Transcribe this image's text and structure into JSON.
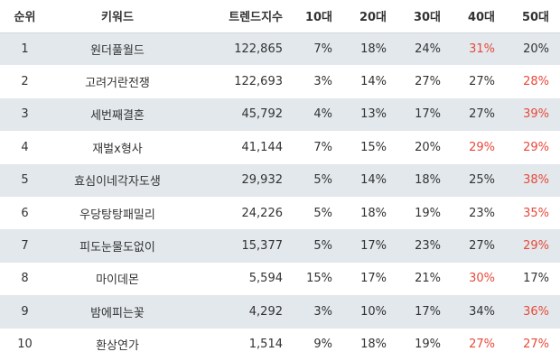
{
  "headers": [
    "순위",
    "키워드",
    "트렌드지수",
    "10대",
    "20대",
    "30대",
    "40대",
    "50대"
  ],
  "highlight_color": "#e8493a",
  "row_shade_color": "#e2e8ec",
  "rows": [
    {
      "rank": "1",
      "keyword": "원더풀월드",
      "trend": "122,865",
      "ages": [
        "7%",
        "18%",
        "24%",
        "31%",
        "20%"
      ],
      "highlight": [
        false,
        false,
        false,
        true,
        false
      ]
    },
    {
      "rank": "2",
      "keyword": "고려거란전쟁",
      "trend": "122,693",
      "ages": [
        "3%",
        "14%",
        "27%",
        "27%",
        "28%"
      ],
      "highlight": [
        false,
        false,
        false,
        false,
        true
      ]
    },
    {
      "rank": "3",
      "keyword": "세번째결혼",
      "trend": "45,792",
      "ages": [
        "4%",
        "13%",
        "17%",
        "27%",
        "39%"
      ],
      "highlight": [
        false,
        false,
        false,
        false,
        true
      ]
    },
    {
      "rank": "4",
      "keyword": "재벌x형사",
      "trend": "41,144",
      "ages": [
        "7%",
        "15%",
        "20%",
        "29%",
        "29%"
      ],
      "highlight": [
        false,
        false,
        false,
        true,
        true
      ]
    },
    {
      "rank": "5",
      "keyword": "효심이네각자도생",
      "trend": "29,932",
      "ages": [
        "5%",
        "14%",
        "18%",
        "25%",
        "38%"
      ],
      "highlight": [
        false,
        false,
        false,
        false,
        true
      ]
    },
    {
      "rank": "6",
      "keyword": "우당탕탕패밀리",
      "trend": "24,226",
      "ages": [
        "5%",
        "18%",
        "19%",
        "23%",
        "35%"
      ],
      "highlight": [
        false,
        false,
        false,
        false,
        true
      ]
    },
    {
      "rank": "7",
      "keyword": "피도눈물도없이",
      "trend": "15,377",
      "ages": [
        "5%",
        "17%",
        "23%",
        "27%",
        "29%"
      ],
      "highlight": [
        false,
        false,
        false,
        false,
        true
      ]
    },
    {
      "rank": "8",
      "keyword": "마이데몬",
      "trend": "5,594",
      "ages": [
        "15%",
        "17%",
        "21%",
        "30%",
        "17%"
      ],
      "highlight": [
        false,
        false,
        false,
        true,
        false
      ]
    },
    {
      "rank": "9",
      "keyword": "밤에피는꽃",
      "trend": "4,292",
      "ages": [
        "3%",
        "10%",
        "17%",
        "34%",
        "36%"
      ],
      "highlight": [
        false,
        false,
        false,
        false,
        true
      ]
    },
    {
      "rank": "10",
      "keyword": "환상연가",
      "trend": "1,514",
      "ages": [
        "9%",
        "18%",
        "19%",
        "27%",
        "27%"
      ],
      "highlight": [
        false,
        false,
        false,
        true,
        true
      ]
    }
  ]
}
